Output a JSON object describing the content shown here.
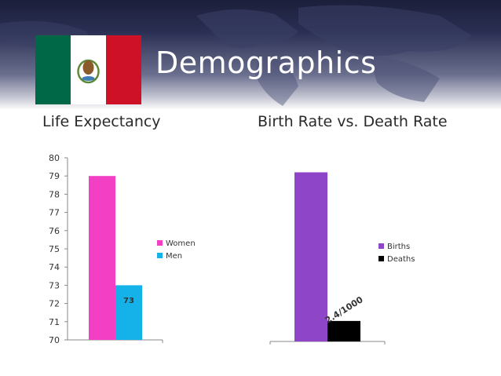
{
  "slide": {
    "title": "Demographics",
    "accent_colors": {
      "flag_green": "#006847",
      "flag_white": "#ffffff",
      "flag_red": "#ce1126"
    }
  },
  "chart_data": [
    {
      "type": "bar",
      "title": "Life Expectancy",
      "categories": [
        ""
      ],
      "series": [
        {
          "name": "Women",
          "values": [
            79
          ],
          "color": "#f23fc3"
        },
        {
          "name": "Men",
          "values": [
            73
          ],
          "color": "#14b2e8",
          "data_label": "73"
        }
      ],
      "ylim": [
        70,
        80
      ],
      "yticks": [
        "70",
        "71",
        "72",
        "73",
        "74",
        "75",
        "76",
        "77",
        "78",
        "79",
        "80"
      ],
      "legend": "right",
      "grid": false
    },
    {
      "type": "bar",
      "title": "Birth Rate vs. Death Rate",
      "categories": [
        ""
      ],
      "series": [
        {
          "name": "Births",
          "values": [
            19.8
          ],
          "color": "#8e45c7"
        },
        {
          "name": "Deaths",
          "values": [
            2.4
          ],
          "color": "#000000",
          "data_label": "2.4/1000"
        }
      ],
      "ylim": [
        0,
        21.5
      ],
      "legend": "right",
      "grid": false
    }
  ]
}
